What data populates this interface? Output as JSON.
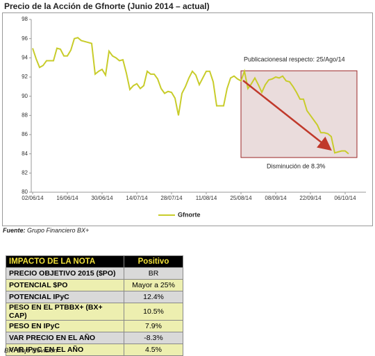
{
  "chart_data": {
    "type": "line",
    "title": "Precio de la Acción de Gfnorte (Junio 2014 – actual)",
    "categories": [
      "02/06/14",
      null,
      null,
      null,
      null,
      null,
      null,
      null,
      null,
      null,
      "16/06/14",
      null,
      null,
      null,
      null,
      null,
      null,
      null,
      null,
      null,
      "30/06/14",
      null,
      null,
      null,
      null,
      null,
      null,
      null,
      null,
      null,
      "14/07/14",
      null,
      null,
      null,
      null,
      null,
      null,
      null,
      null,
      null,
      "28/07/14",
      null,
      null,
      null,
      null,
      null,
      null,
      null,
      null,
      null,
      "11/08/14",
      null,
      null,
      null,
      null,
      null,
      null,
      null,
      null,
      null,
      "25/08/14",
      null,
      null,
      null,
      null,
      null,
      null,
      null,
      null,
      null,
      "08/09/14",
      null,
      null,
      null,
      null,
      null,
      null,
      null,
      null,
      null,
      "22/09/14",
      null,
      null,
      null,
      null,
      null,
      null,
      null,
      null,
      null,
      "06/10/14",
      null
    ],
    "series": [
      {
        "name": "Gfnorte",
        "color": "#c8cc2a",
        "values": [
          95.0,
          93.9,
          93.0,
          93.2,
          93.7,
          93.7,
          93.7,
          95.0,
          94.9,
          94.2,
          94.2,
          94.8,
          96.0,
          96.1,
          95.8,
          95.7,
          95.6,
          95.5,
          92.3,
          92.6,
          92.8,
          92.2,
          94.7,
          94.2,
          94.0,
          93.7,
          93.8,
          92.4,
          90.7,
          91.1,
          91.3,
          90.8,
          91.1,
          92.6,
          92.3,
          92.3,
          91.8,
          90.8,
          90.3,
          90.5,
          90.4,
          89.8,
          88.0,
          90.3,
          91.0,
          91.9,
          92.6,
          92.2,
          91.2,
          91.9,
          92.6,
          92.6,
          91.5,
          89.0,
          89.0,
          89.0,
          90.8,
          91.9,
          92.1,
          91.8,
          91.6,
          92.6,
          90.8,
          91.3,
          91.9,
          91.2,
          90.4,
          91.2,
          91.7,
          91.8,
          92.0,
          91.9,
          92.1,
          91.6,
          91.5,
          91.0,
          90.4,
          89.7,
          89.7,
          88.5,
          88.0,
          87.5,
          87.0,
          86.2,
          86.2,
          86.1,
          85.8,
          84.1,
          84.2,
          84.3,
          84.3,
          84.0
        ]
      }
    ],
    "ylim": [
      80,
      98
    ],
    "yticks": [
      80,
      82,
      84,
      86,
      88,
      90,
      92,
      94,
      96,
      98
    ],
    "annotations": [
      "Publicacionesal respecto: 25/Ago/14",
      "Disminución de 8.3%"
    ],
    "legend": "bottom"
  },
  "source": {
    "label": "Fuente:",
    "text": "Grupo Financiero BX+"
  },
  "table": {
    "header": [
      "IMPACTO DE LA NOTA",
      "Positivo"
    ],
    "rows": [
      [
        "PRECIO OBJETIVO 2015 ($PO)",
        "BR"
      ],
      [
        "POTENCIAL $PO",
        "Mayor a 25%"
      ],
      [
        "POTENCIAL IPyC",
        "12.4%"
      ],
      [
        "PESO EN EL PTBBX+ (BX+ CAP)",
        "10.5%"
      ],
      [
        "PESO EN IPyC",
        "7.9%"
      ],
      [
        "VAR PRECIO EN EL AÑO",
        "-8.3%"
      ],
      [
        "VAR IPyC EN EL AÑO",
        "4.5%"
      ]
    ]
  },
  "footnote": "BR: Bajo Revisión"
}
